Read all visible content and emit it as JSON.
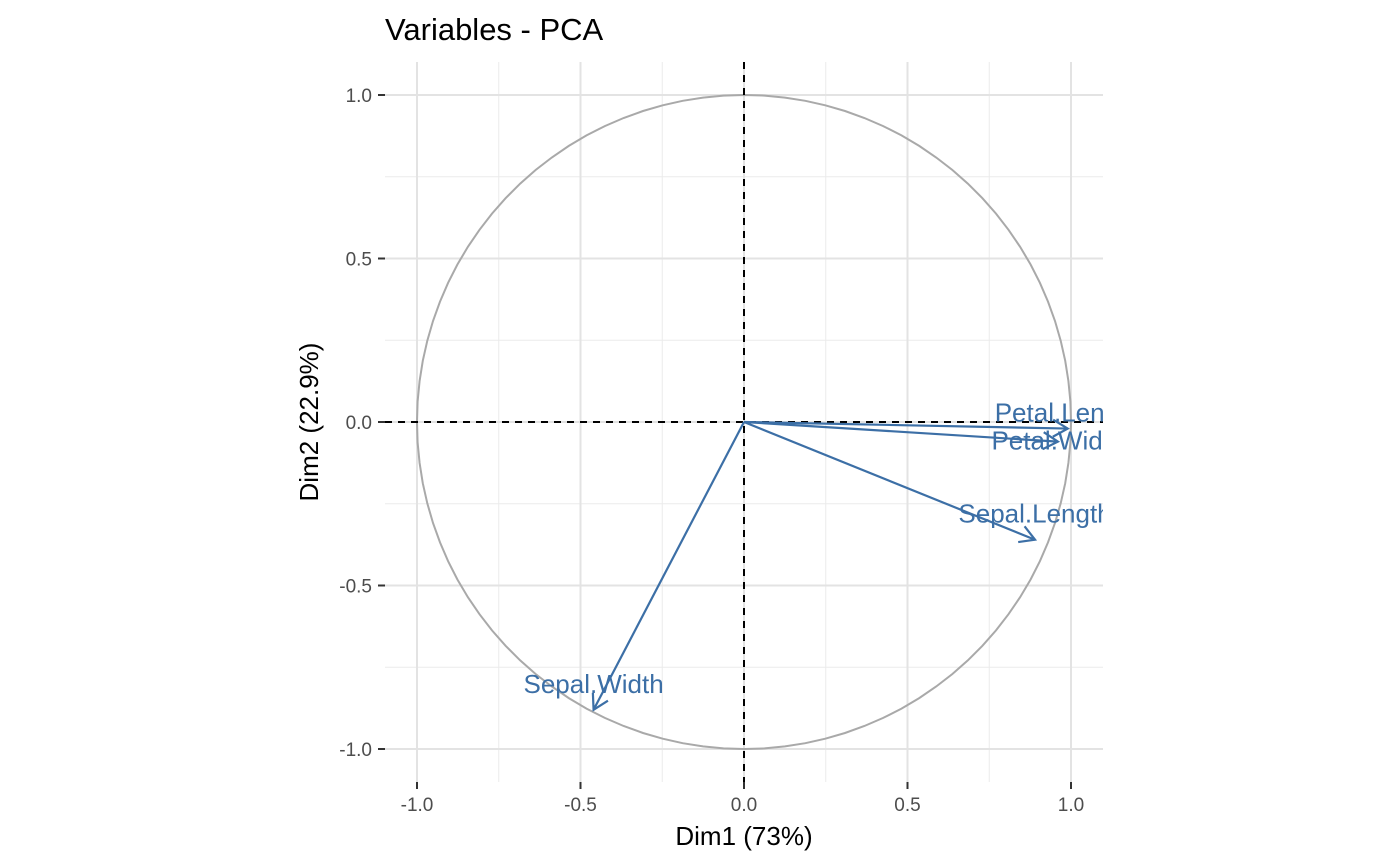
{
  "chart_data": {
    "type": "scatter",
    "title": "Variables - PCA",
    "xlabel": "Dim1 (73%)",
    "ylabel": "Dim2 (22.9%)",
    "xlim": [
      -1.0,
      1.0
    ],
    "ylim": [
      -1.0,
      1.0
    ],
    "x_ticks": [
      "-1.0",
      "-0.5",
      "0.0",
      "0.5",
      "1.0"
    ],
    "y_ticks": [
      "-1.0",
      "-0.5",
      "0.0",
      "0.5",
      "1.0"
    ],
    "grid": true,
    "unit_circle": true,
    "reference_lines": {
      "x": 0,
      "y": 0,
      "style": "dashed"
    },
    "arrow_color": "#3C6FA6",
    "circle_color": "#A9A9A9",
    "variables": [
      {
        "name": "Sepal.Length",
        "x": 0.89,
        "y": -0.36
      },
      {
        "name": "Sepal.Width",
        "x": -0.46,
        "y": -0.88
      },
      {
        "name": "Petal.Length",
        "x": 0.99,
        "y": -0.02
      },
      {
        "name": "Petal.Width",
        "x": 0.96,
        "y": -0.06
      }
    ]
  }
}
